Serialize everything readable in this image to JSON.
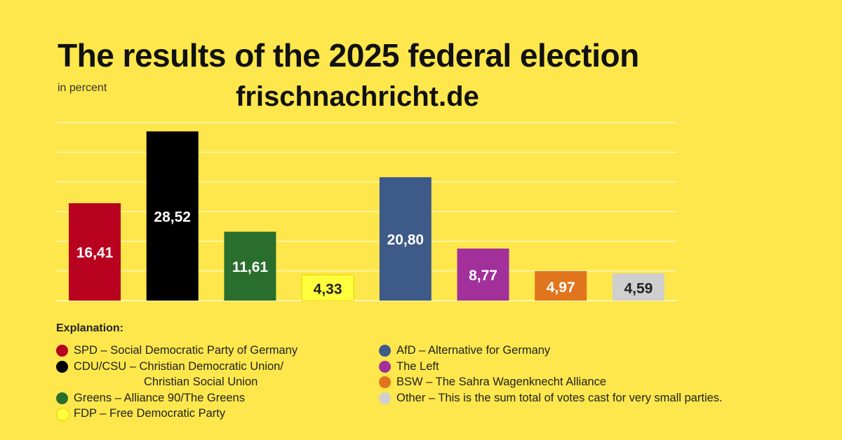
{
  "chart_data": {
    "type": "bar",
    "title": "The results of the 2025 federal election",
    "subtitle": "in percent",
    "watermark": "frischnachricht.de",
    "categories": [
      "SPD",
      "CDU/CSU",
      "Greens",
      "FDP",
      "AfD",
      "The Left",
      "BSW",
      "Other"
    ],
    "values": [
      16.41,
      28.52,
      11.61,
      4.33,
      20.8,
      8.77,
      4.97,
      4.59
    ],
    "value_labels": [
      "16,41",
      "28,52",
      "11,61",
      "4,33",
      "20,80",
      "8,77",
      "4,97",
      "4,59"
    ],
    "colors": [
      "#b8001f",
      "#000000",
      "#2a6e2e",
      "#ffff3d",
      "#3d5a88",
      "#a2309b",
      "#e0751e",
      "#cfcfcf"
    ],
    "label_colors": [
      "#ffffff",
      "#ffffff",
      "#ffffff",
      "#222222",
      "#ffffff",
      "#ffffff",
      "#ffffff",
      "#222222"
    ],
    "ylim": [
      0,
      30
    ],
    "grid": true,
    "xlabel": "",
    "ylabel": ""
  },
  "legend": {
    "heading": "Explanation:",
    "left": [
      {
        "color": "#b8001f",
        "lines": [
          "SPD – Social Democratic Party of Germany"
        ]
      },
      {
        "color": "#000000",
        "lines": [
          "CDU/CSU – Christian Democratic Union/",
          "Christian Social Union"
        ]
      },
      {
        "color": "#2a6e2e",
        "lines": [
          "Greens – Alliance 90/The Greens"
        ]
      },
      {
        "color": "#ffff3d",
        "lines": [
          "FDP – Free Democratic Party"
        ]
      }
    ],
    "right": [
      {
        "color": "#3d5a88",
        "lines": [
          "AfD – Alternative for Germany"
        ]
      },
      {
        "color": "#a2309b",
        "lines": [
          "The Left"
        ]
      },
      {
        "color": "#e0751e",
        "lines": [
          "BSW – The Sahra Wagenknecht Alliance"
        ]
      },
      {
        "color": "#cfcfcf",
        "lines": [
          "Other – This is the sum total of votes cast for very small parties."
        ]
      }
    ]
  }
}
